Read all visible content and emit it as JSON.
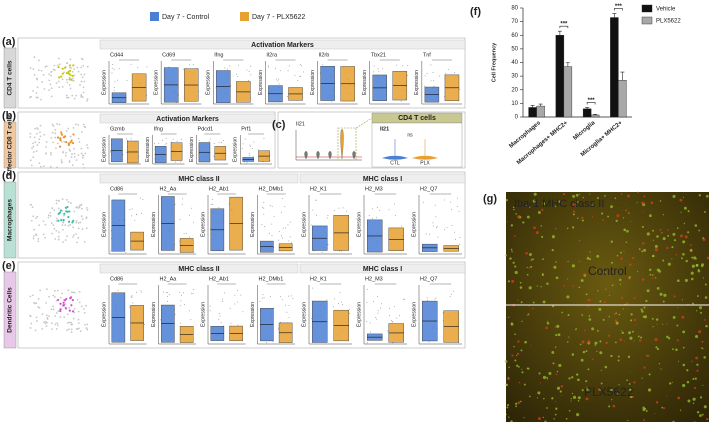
{
  "figure": {
    "legend": [
      {
        "name": "Day 7 - Control",
        "color": "#4a7fd4"
      },
      {
        "name": "Day 7 - PLX5622",
        "color": "#e8a030"
      }
    ],
    "axis_label": "Expression",
    "panels": [
      {
        "label": "(a)",
        "side": "CD4 T cells",
        "side_color": "#d8d8d8",
        "groups": [
          {
            "title": "Activation Markers",
            "genes": [
              "Cd44",
              "Cd69",
              "Ifng",
              "Il2ra",
              "Il2rb",
              "Tbx21",
              "Tnf"
            ]
          }
        ]
      },
      {
        "label": "(b)",
        "side": "Effector CD8 T cells",
        "side_color": "#f0c8a0",
        "groups": [
          {
            "title": "Activation Markers",
            "genes": [
              "Gzmb",
              "Ifng",
              "Pdcd1",
              "Prf1"
            ]
          }
        ]
      },
      {
        "label": "(d)",
        "side": "Macrophages",
        "side_color": "#b8e0d4",
        "groups": [
          {
            "title": "MHC class II",
            "genes": [
              "Cd86",
              "H2_Aa",
              "H2_Ab1",
              "H2_DMb1"
            ]
          },
          {
            "title": "MHC class I",
            "genes": [
              "H2_K1",
              "H2_M3",
              "H2_Q7"
            ]
          }
        ]
      },
      {
        "label": "(e)",
        "side": "Dendritic Cells",
        "side_color": "#e8c8e8",
        "groups": [
          {
            "title": "MHC class II",
            "genes": [
              "Cd86",
              "H2_Aa",
              "H2_Ab1",
              "H2_DMb1"
            ]
          },
          {
            "title": "MHC class I",
            "genes": [
              "H2_K1",
              "H2_M3",
              "H2_Q7"
            ]
          }
        ]
      }
    ],
    "panel_c": {
      "label": "(c)",
      "title": "Il21",
      "inset_title": "CD4 T cells",
      "inset_gene": "Il21",
      "inset_groups": [
        "CTL",
        "PLX"
      ],
      "inset_sig": "ns"
    },
    "panel_g": {
      "label": "(g)",
      "stains": [
        {
          "name": "Iba-1",
          "color": "#40d040"
        },
        {
          "name": "MHC class II",
          "color": "#ff3030"
        }
      ],
      "conditions": [
        "Control",
        "PLX5622"
      ]
    }
  },
  "chart_data": {
    "type": "bar",
    "label": "(f)",
    "y_label": "Cell Frequency",
    "categories": [
      "Macrophages",
      "Macrophages+ MHC2+",
      "Microglia",
      "Microglia+ MHC2+"
    ],
    "series": [
      {
        "name": "Vehicle",
        "color": "#111111",
        "values": [
          7,
          60,
          6,
          73
        ],
        "errors": [
          1.5,
          3,
          1,
          3
        ]
      },
      {
        "name": "PLX5622",
        "color": "#a8a8a8",
        "values": [
          8,
          37,
          1.5,
          27
        ],
        "errors": [
          1.5,
          3,
          0.5,
          6
        ]
      }
    ],
    "significance": [
      null,
      "***",
      "***",
      "***"
    ],
    "ylim": [
      0,
      80
    ],
    "yticks": [
      0,
      10,
      20,
      30,
      40,
      50,
      60,
      70,
      80
    ],
    "legend": "upper right"
  }
}
